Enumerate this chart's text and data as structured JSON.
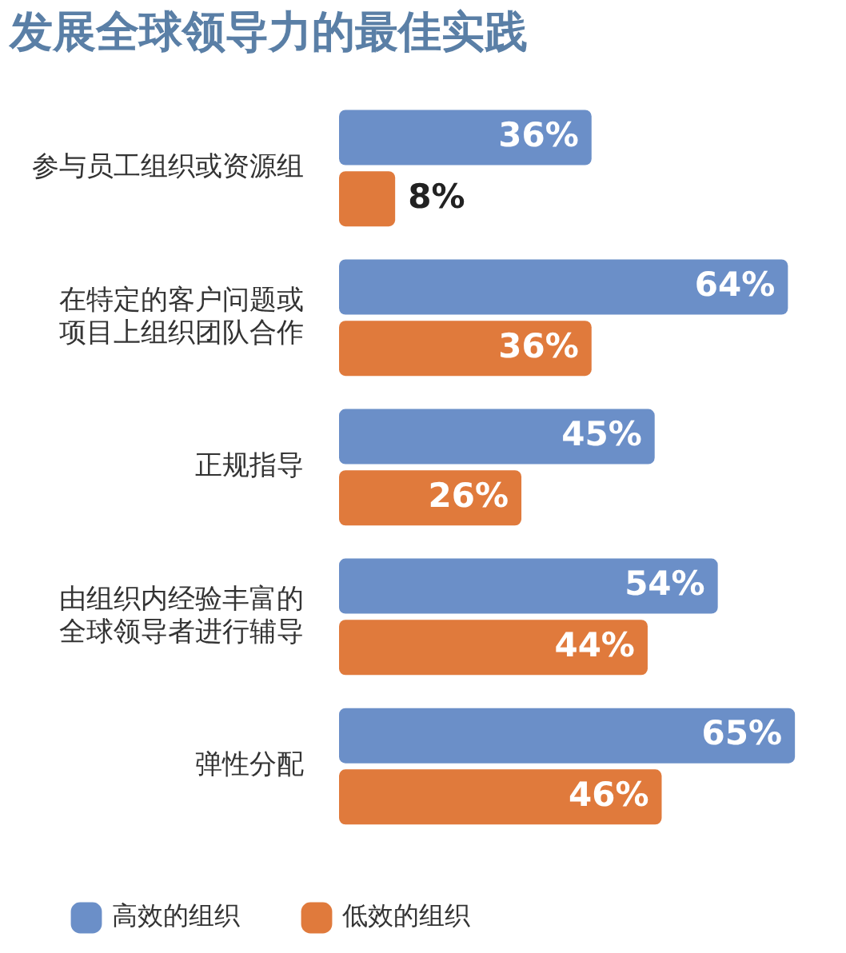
{
  "chart_data": {
    "type": "bar",
    "orientation": "horizontal",
    "title": "发展全球领导力的最佳实践",
    "categories": [
      "参与员工组织或资源组",
      "在特定的客户问题或项目上组织团队合作",
      "正规指导",
      "由组织内经验丰富的全球领导者进行辅导",
      "弹性分配"
    ],
    "series": [
      {
        "name": "高效的组织",
        "color": "#6b8fc8",
        "values": [
          36,
          64,
          45,
          54,
          65
        ],
        "value_labels": [
          "36%",
          "64%",
          "45%",
          "54%",
          "65%"
        ]
      },
      {
        "name": "低效的组织",
        "color": "#e07a3c",
        "values": [
          8,
          36,
          26,
          44,
          46
        ],
        "value_labels": [
          "8%",
          "36%",
          "26%",
          "44%",
          "46%"
        ]
      }
    ],
    "legend": "bottom",
    "tick_labels": "y"
  }
}
